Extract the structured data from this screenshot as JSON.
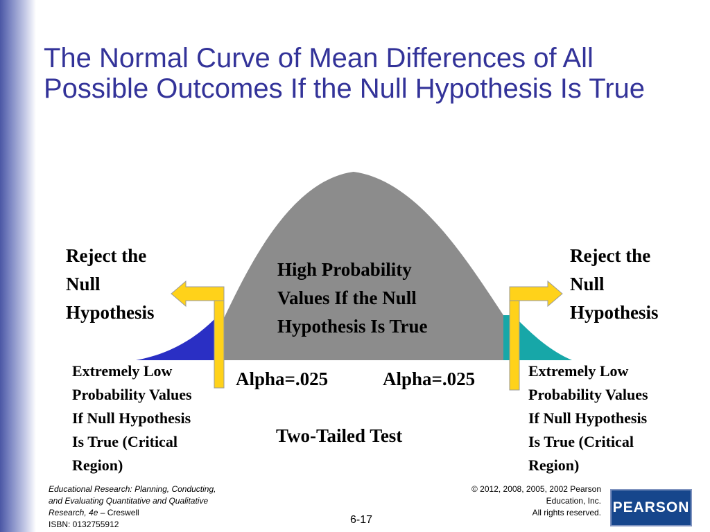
{
  "slide": {
    "title": "The Normal Curve of Mean Differences of All Possible Outcomes If the Null Hypothesis Is True",
    "page_number": "6-17"
  },
  "diagram": {
    "reject_left": [
      "Reject the",
      "Null",
      "Hypothesis"
    ],
    "reject_right": [
      "Reject the",
      "Null",
      "Hypothesis"
    ],
    "center": [
      "High Probability",
      "Values If the Null",
      "Hypothesis Is True"
    ],
    "extreme_left": [
      "Extremely Low",
      "Probability Values",
      "If Null Hypothesis",
      "Is True (Critical",
      "Region)"
    ],
    "extreme_right": [
      "Extremely Low",
      "Probability Values",
      "If Null Hypothesis",
      "Is True (Critical",
      "Region)"
    ],
    "alpha_left": "Alpha=.025",
    "alpha_right": "Alpha=.025",
    "test_label": "Two-Tailed Test",
    "colors": {
      "curve_body": "#8c8c8c",
      "left_tail": "#2a2fc4",
      "right_tail": "#17a7a8",
      "arrow": "#ffd21a",
      "title": "#333399"
    }
  },
  "footer": {
    "book_italic_1": "Educational Research:  Planning, Conducting,",
    "book_italic_2": "and Evaluating Quantitative and Qualitative",
    "book_italic_3": "Research, 4e – ",
    "author": "Creswell",
    "isbn": "ISBN: 0132755912",
    "copyright_1": "© 2012, 2008, 2005, 2002 Pearson",
    "copyright_2": "Education, Inc.",
    "copyright_3": "All rights reserved.",
    "logo_text": "PEARSON"
  }
}
